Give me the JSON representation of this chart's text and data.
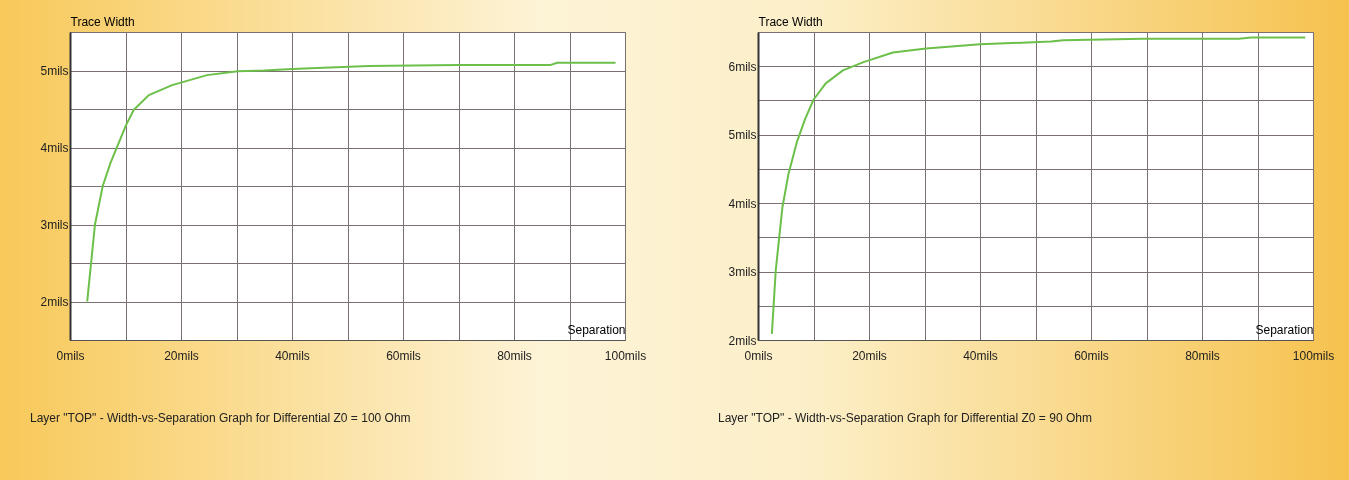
{
  "chart_data": [
    {
      "type": "line",
      "title": "Layer \"TOP\" - Width-vs-Separation Graph for Differential Z0 = 100 Ohm",
      "xlabel": "Separation",
      "ylabel": "Trace Width",
      "xlim": [
        0,
        100
      ],
      "ylim": [
        1.5,
        5.5
      ],
      "xticks": [
        {
          "value": 0,
          "label": "0mils"
        },
        {
          "value": 10,
          "label": null
        },
        {
          "value": 20,
          "label": "20mils"
        },
        {
          "value": 30,
          "label": null
        },
        {
          "value": 40,
          "label": "40mils"
        },
        {
          "value": 50,
          "label": null
        },
        {
          "value": 60,
          "label": "60mils"
        },
        {
          "value": 70,
          "label": null
        },
        {
          "value": 80,
          "label": "80mils"
        },
        {
          "value": 90,
          "label": null
        },
        {
          "value": 100,
          "label": "100mils"
        }
      ],
      "yticks": [
        {
          "value": 1.5,
          "label": null
        },
        {
          "value": 2,
          "label": "2mils"
        },
        {
          "value": 2.5,
          "label": null
        },
        {
          "value": 3,
          "label": "3mils"
        },
        {
          "value": 3.5,
          "label": null
        },
        {
          "value": 4,
          "label": "4mils"
        },
        {
          "value": 4.5,
          "label": null
        },
        {
          "value": 5,
          "label": "5mils"
        },
        {
          "value": 5.5,
          "label": null
        }
      ],
      "grid": true,
      "marker": "none",
      "series": [
        {
          "color": "#6cc04a",
          "x": [
            3.1,
            4.5,
            5.9,
            7.3,
            10.1,
            11.5,
            14.2,
            18.4,
            24.7,
            30.2,
            35,
            40,
            53.8,
            69.8,
            86.5,
            87.8,
            98.3
          ],
          "values": [
            2.0,
            3.0,
            3.5,
            3.8,
            4.29,
            4.49,
            4.68,
            4.81,
            4.94,
            4.99,
            5.0,
            5.02,
            5.06,
            5.07,
            5.07,
            5.1,
            5.1
          ]
        }
      ]
    },
    {
      "type": "line",
      "title": "Layer \"TOP\" - Width-vs-Separation Graph for Differential Z0 = 90 Ohm",
      "xlabel": "Separation",
      "ylabel": "Trace Width",
      "xlim": [
        0,
        100
      ],
      "ylim": [
        2,
        6.5
      ],
      "xticks": [
        {
          "value": 0,
          "label": "0mils"
        },
        {
          "value": 10,
          "label": null
        },
        {
          "value": 20,
          "label": "20mils"
        },
        {
          "value": 30,
          "label": null
        },
        {
          "value": 40,
          "label": "40mils"
        },
        {
          "value": 50,
          "label": null
        },
        {
          "value": 60,
          "label": "60mils"
        },
        {
          "value": 70,
          "label": null
        },
        {
          "value": 80,
          "label": "80mils"
        },
        {
          "value": 90,
          "label": null
        },
        {
          "value": 100,
          "label": "100mils"
        }
      ],
      "yticks": [
        {
          "value": 2,
          "label": "2mils"
        },
        {
          "value": 2.5,
          "label": null
        },
        {
          "value": 3,
          "label": "3mils"
        },
        {
          "value": 3.5,
          "label": null
        },
        {
          "value": 4,
          "label": "4mils"
        },
        {
          "value": 4.5,
          "label": null
        },
        {
          "value": 5,
          "label": "5mils"
        },
        {
          "value": 5.5,
          "label": null
        },
        {
          "value": 6,
          "label": "6mils"
        },
        {
          "value": 6.5,
          "label": null
        }
      ],
      "grid": true,
      "marker": "none",
      "series": [
        {
          "color": "#6cc04a",
          "x": [
            2.5,
            3.2,
            4.4,
            5.5,
            7.0,
            8.5,
            10,
            12.2,
            15.3,
            19,
            24.3,
            30.3,
            40,
            52.8,
            55,
            69.3,
            86.6,
            88.9,
            98.6
          ],
          "values": [
            2.09,
            3.02,
            3.94,
            4.43,
            4.89,
            5.23,
            5.51,
            5.75,
            5.94,
            6.06,
            6.2,
            6.26,
            6.32,
            6.36,
            6.38,
            6.4,
            6.4,
            6.42,
            6.42
          ]
        }
      ]
    }
  ]
}
